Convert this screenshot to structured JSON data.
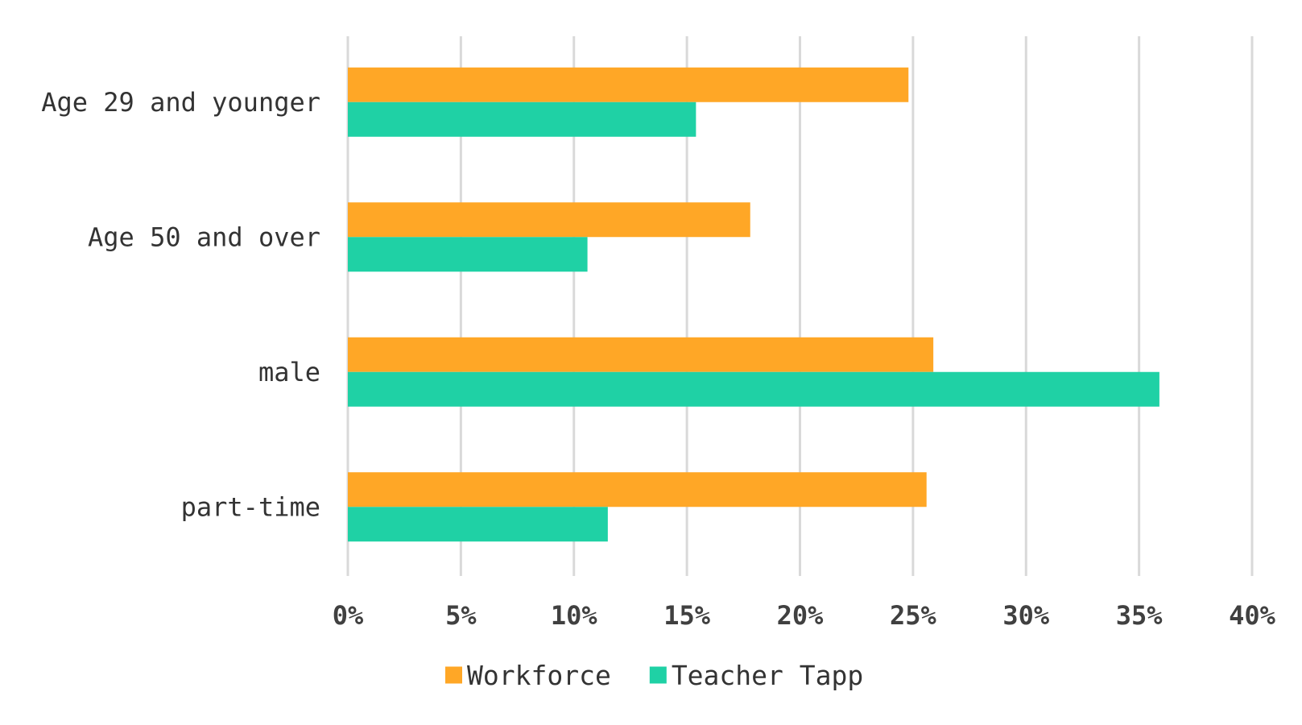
{
  "chart_data": {
    "type": "bar",
    "orientation": "horizontal",
    "categories": [
      "Age 29 and younger",
      "Age 50 and over",
      "male",
      "part-time"
    ],
    "series": [
      {
        "name": "Workforce",
        "color": "#FFA726",
        "values": [
          24.8,
          17.8,
          25.9,
          25.6
        ]
      },
      {
        "name": "Teacher Tapp",
        "color": "#1FD1A5",
        "values": [
          15.4,
          10.6,
          35.9,
          11.5
        ]
      }
    ],
    "xlim": [
      0,
      40
    ],
    "xticks": [
      "0%",
      "5%",
      "10%",
      "15%",
      "20%",
      "25%",
      "30%",
      "35%",
      "40%"
    ],
    "grid": true,
    "legend_position": "bottom"
  }
}
